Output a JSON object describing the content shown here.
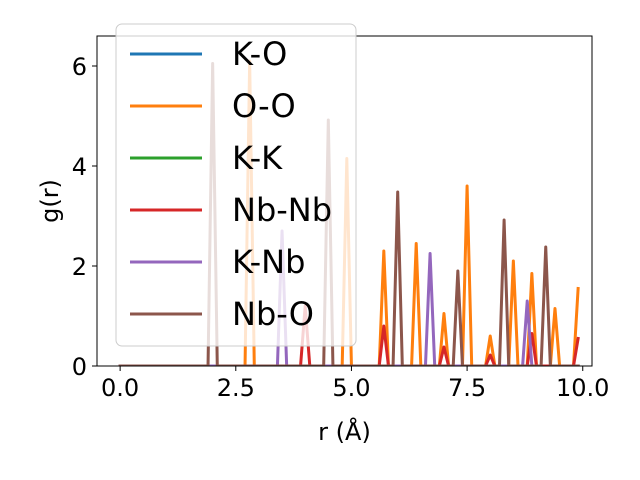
{
  "chart_data": {
    "type": "line",
    "title": "",
    "xlabel": "r (Å)",
    "ylabel": "g(r)",
    "xlim": [
      -0.5,
      10.2
    ],
    "ylim": [
      0,
      6.6
    ],
    "xticks": [
      0.0,
      2.5,
      5.0,
      7.5,
      10.0
    ],
    "xtick_labels": [
      "0.0",
      "2.5",
      "5.0",
      "7.5",
      "10.0"
    ],
    "yticks": [
      0,
      2,
      4,
      6
    ],
    "ytick_labels": [
      "0",
      "2",
      "4",
      "6"
    ],
    "grid": false,
    "legend_position": "upper-left",
    "series": [
      {
        "name": "K-O",
        "color": "#1f77b4",
        "x": [
          0.0,
          9.9
        ],
        "y": [
          0.0,
          0.0
        ]
      },
      {
        "name": "O-O",
        "color": "#ff7f0e",
        "x": [
          0.0,
          2.7,
          2.8,
          2.9,
          4.8,
          4.9,
          5.0,
          5.6,
          5.7,
          5.8,
          6.3,
          6.4,
          6.5,
          6.9,
          7.0,
          7.1,
          7.4,
          7.5,
          7.6,
          7.9,
          8.0,
          8.1,
          8.4,
          8.5,
          8.6,
          8.8,
          8.9,
          9.0,
          9.3,
          9.4,
          9.5,
          9.8,
          9.9
        ],
        "y": [
          0.0,
          0.0,
          6.1,
          0.0,
          0.0,
          4.15,
          0.0,
          0.0,
          2.3,
          0.0,
          0.0,
          2.45,
          0.0,
          0.0,
          1.05,
          0.0,
          0.0,
          3.6,
          0.0,
          0.0,
          0.6,
          0.0,
          0.0,
          2.1,
          0.0,
          0.0,
          1.85,
          0.0,
          0.0,
          1.15,
          0.0,
          0.0,
          1.55
        ]
      },
      {
        "name": "K-K",
        "color": "#2ca02c",
        "x": [
          0.0,
          9.9
        ],
        "y": [
          0.0,
          0.0
        ]
      },
      {
        "name": "Nb-Nb",
        "color": "#d62728",
        "x": [
          0.0,
          3.9,
          4.0,
          4.1,
          5.6,
          5.7,
          5.8,
          6.9,
          7.0,
          7.1,
          7.9,
          8.0,
          8.1,
          8.8,
          8.9,
          9.0,
          9.8,
          9.9
        ],
        "y": [
          0.0,
          0.0,
          1.2,
          0.0,
          0.0,
          0.8,
          0.0,
          0.0,
          0.38,
          0.0,
          0.0,
          0.22,
          0.0,
          0.0,
          0.65,
          0.0,
          0.0,
          0.55
        ]
      },
      {
        "name": "K-Nb",
        "color": "#9467bd",
        "x": [
          0.0,
          3.4,
          3.5,
          3.6,
          6.6,
          6.7,
          6.8,
          8.7,
          8.8,
          8.9
        ],
        "y": [
          0.0,
          0.0,
          2.7,
          0.0,
          0.0,
          2.25,
          0.0,
          0.0,
          1.3,
          0.0
        ]
      },
      {
        "name": "Nb-O",
        "color": "#8c564b",
        "x": [
          0.0,
          1.9,
          2.0,
          2.1,
          4.4,
          4.5,
          4.6,
          5.9,
          6.0,
          6.1,
          7.2,
          7.3,
          7.4,
          8.2,
          8.3,
          8.4,
          9.1,
          9.2,
          9.3,
          9.9
        ],
        "y": [
          0.0,
          0.0,
          6.05,
          0.0,
          0.0,
          4.92,
          0.0,
          0.0,
          3.48,
          0.0,
          0.0,
          1.9,
          0.0,
          0.0,
          2.92,
          0.0,
          0.0,
          2.38,
          0.0,
          0.0
        ]
      }
    ]
  }
}
